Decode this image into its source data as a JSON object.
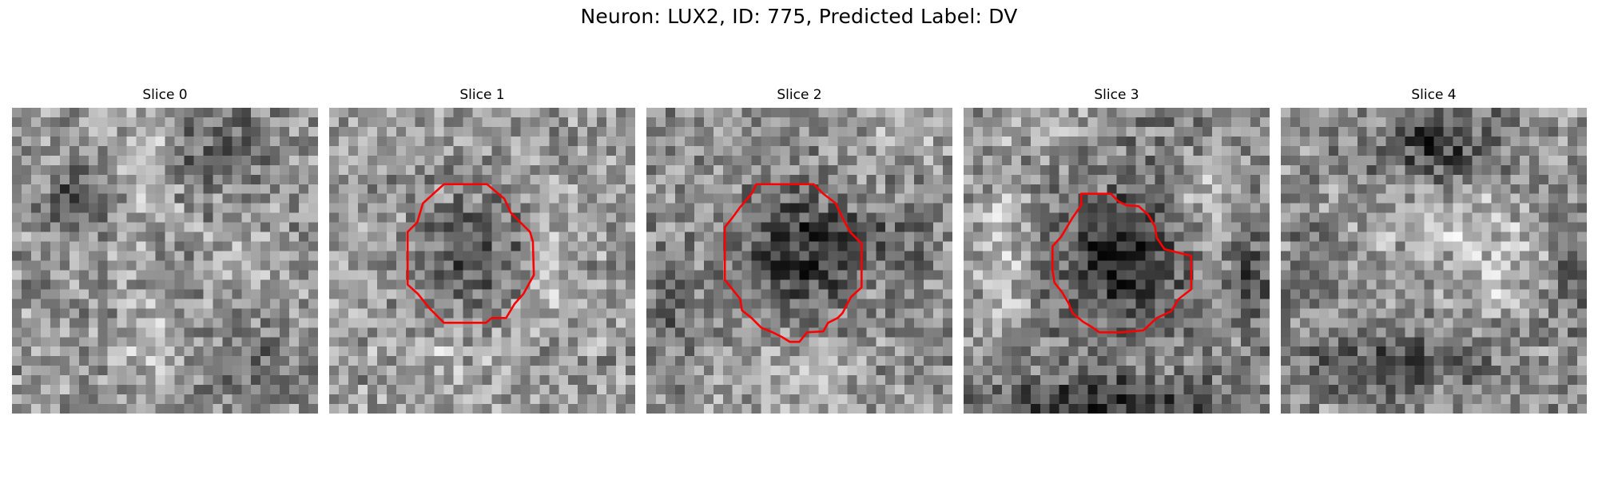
{
  "figure": {
    "title": "Neuron: LUX2, ID: 775, Predicted Label: DV",
    "grid_size": 32,
    "contour_color": "#ff0000",
    "panels": [
      {
        "title": "Slice 0",
        "has_contour": false
      },
      {
        "title": "Slice 1",
        "has_contour": true
      },
      {
        "title": "Slice 2",
        "has_contour": true
      },
      {
        "title": "Slice 3",
        "has_contour": true
      },
      {
        "title": "Slice 4",
        "has_contour": false
      }
    ]
  }
}
